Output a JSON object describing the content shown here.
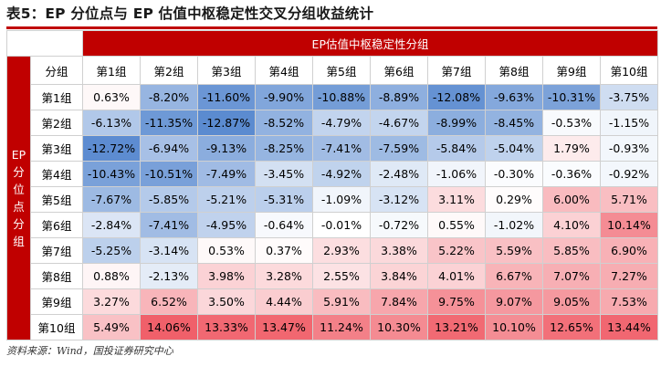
{
  "title": "表5：EP 分位点与 EP 估值中枢稳定性交叉分组收益统计",
  "table": {
    "super_header": "EP估值中枢稳定性分组",
    "side_header_chars": [
      "EP",
      "分",
      "位",
      "点",
      "分",
      "组"
    ],
    "corner_label": "分组",
    "columns": [
      "第1组",
      "第2组",
      "第3组",
      "第4组",
      "第5组",
      "第6组",
      "第7组",
      "第8组",
      "第9组",
      "第10组"
    ],
    "rows": [
      {
        "label": "第1组",
        "values": [
          "0.63%",
          "-8.20%",
          "-11.60%",
          "-9.90%",
          "-10.88%",
          "-8.89%",
          "-12.08%",
          "-9.63%",
          "-10.31%",
          "-3.75%"
        ]
      },
      {
        "label": "第2组",
        "values": [
          "-6.13%",
          "-11.35%",
          "-12.87%",
          "-8.52%",
          "-4.79%",
          "-4.67%",
          "-8.99%",
          "-8.45%",
          "-0.53%",
          "-1.15%"
        ]
      },
      {
        "label": "第3组",
        "values": [
          "-12.72%",
          "-6.94%",
          "-9.13%",
          "-8.25%",
          "-7.41%",
          "-7.59%",
          "-5.84%",
          "-5.04%",
          "1.79%",
          "-0.93%"
        ]
      },
      {
        "label": "第4组",
        "values": [
          "-10.43%",
          "-10.51%",
          "-7.49%",
          "-3.45%",
          "-4.92%",
          "-2.48%",
          "-1.06%",
          "-0.30%",
          "-0.36%",
          "-0.92%"
        ]
      },
      {
        "label": "第5组",
        "values": [
          "-7.67%",
          "-5.85%",
          "-5.21%",
          "-5.31%",
          "-1.09%",
          "-3.12%",
          "3.11%",
          "0.29%",
          "6.00%",
          "5.71%"
        ]
      },
      {
        "label": "第6组",
        "values": [
          "-2.84%",
          "-7.41%",
          "-4.95%",
          "-0.64%",
          "-0.01%",
          "-0.72%",
          "0.55%",
          "-1.02%",
          "4.10%",
          "10.14%"
        ]
      },
      {
        "label": "第7组",
        "values": [
          "-5.25%",
          "-3.14%",
          "0.53%",
          "0.37%",
          "2.93%",
          "3.38%",
          "5.22%",
          "5.59%",
          "5.85%",
          "6.90%"
        ]
      },
      {
        "label": "第8组",
        "values": [
          "0.88%",
          "-2.13%",
          "3.98%",
          "3.28%",
          "2.55%",
          "3.84%",
          "4.01%",
          "6.67%",
          "7.07%",
          "7.27%"
        ]
      },
      {
        "label": "第9组",
        "values": [
          "3.27%",
          "6.52%",
          "3.50%",
          "4.44%",
          "5.91%",
          "7.84%",
          "9.75%",
          "9.07%",
          "9.05%",
          "7.53%"
        ]
      },
      {
        "label": "第10组",
        "values": [
          "5.49%",
          "14.06%",
          "13.33%",
          "13.47%",
          "11.24%",
          "10.30%",
          "13.21%",
          "10.10%",
          "12.65%",
          "13.44%"
        ]
      }
    ]
  },
  "heatmap_colors": {
    "negative": "#5b8bd0",
    "neutral": "#ffffff",
    "positive": "#f0606a"
  },
  "source": "资料来源：Wind，国投证券研究中心"
}
